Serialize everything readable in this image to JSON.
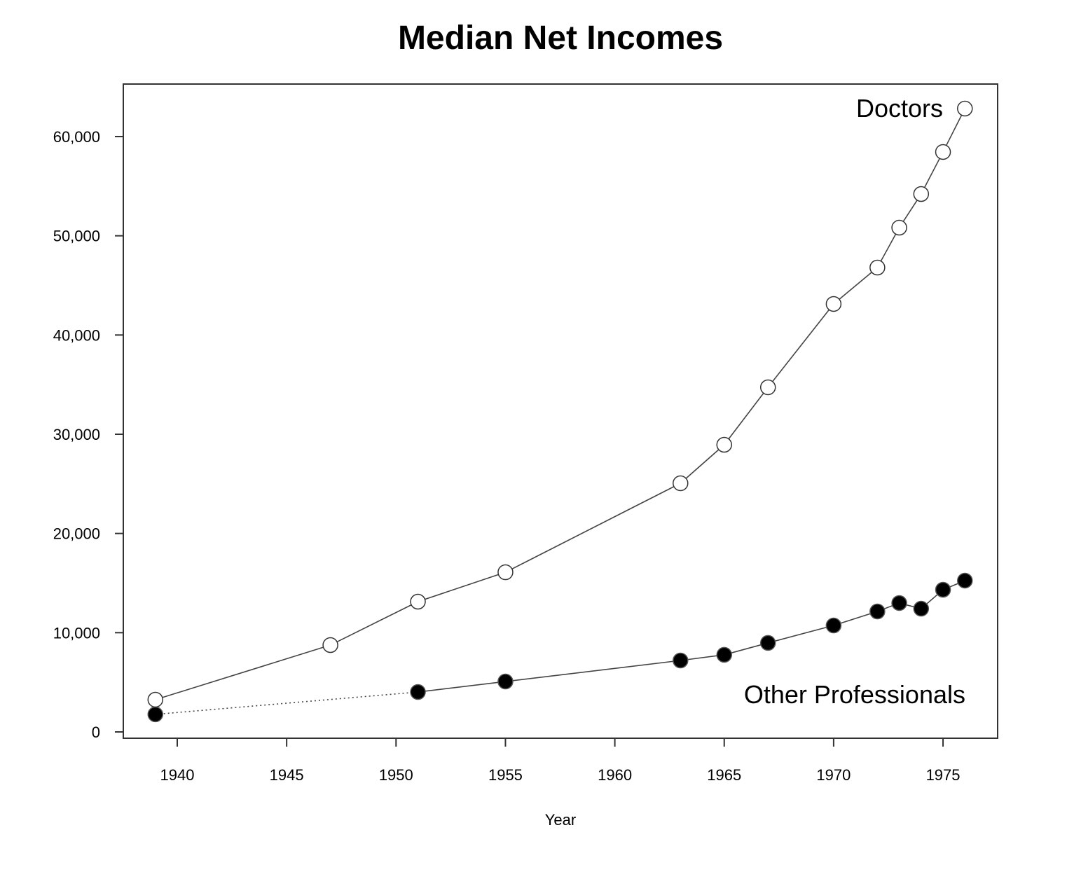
{
  "chart_data": {
    "type": "line",
    "title": "Median Net Incomes",
    "xlabel": "Year",
    "ylabel": "",
    "xlim": [
      1937.5,
      1977.5
    ],
    "ylim": [
      -600,
      65300
    ],
    "x_ticks": [
      1940,
      1945,
      1950,
      1955,
      1960,
      1965,
      1970,
      1975
    ],
    "x_tick_labels": [
      "1940",
      "1945",
      "1950",
      "1955",
      "1960",
      "1965",
      "1970",
      "1975"
    ],
    "y_ticks": [
      0,
      10000,
      20000,
      30000,
      40000,
      50000,
      60000
    ],
    "y_tick_labels": [
      "0",
      "10,000",
      "20,000",
      "30,000",
      "40,000",
      "50,000",
      "60,000"
    ],
    "grid": false,
    "legend": "none (direct labels)",
    "series": [
      {
        "name": "Doctors",
        "marker": "open-circle",
        "x": [
          1939,
          1947,
          1951,
          1955,
          1963,
          1965,
          1967,
          1970,
          1972,
          1973,
          1974,
          1975,
          1976
        ],
        "y": [
          3250,
          8750,
          13130,
          16090,
          25060,
          28940,
          34730,
          43130,
          46800,
          50820,
          54210,
          58450,
          62820
        ]
      },
      {
        "name": "Other Professionals",
        "marker": "filled-circle",
        "dotted_first_segment": true,
        "x": [
          1939,
          1951,
          1955,
          1963,
          1965,
          1967,
          1970,
          1972,
          1973,
          1974,
          1975,
          1976
        ],
        "y": [
          1770,
          4020,
          5080,
          7200,
          7770,
          8970,
          10730,
          12140,
          12990,
          12420,
          14330,
          15250
        ]
      }
    ]
  }
}
